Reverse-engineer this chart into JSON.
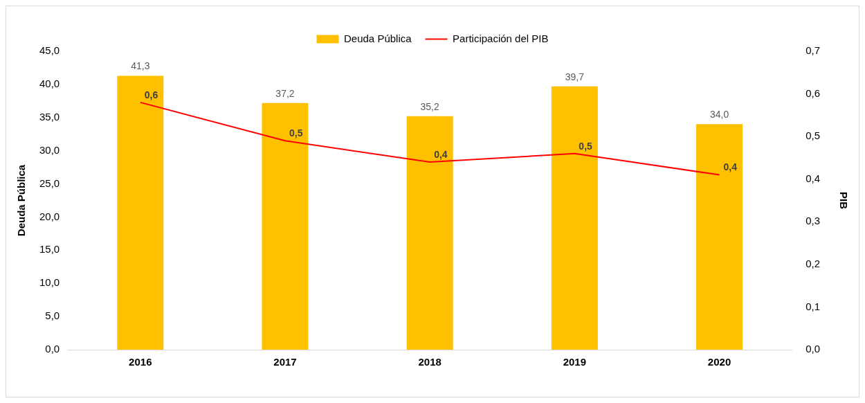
{
  "chart_data": {
    "type": "bar",
    "categories": [
      "2016",
      "2017",
      "2018",
      "2019",
      "2020"
    ],
    "series": [
      {
        "name": "Deuda Pública",
        "color": "#ffc000",
        "values": [
          41.3,
          37.2,
          35.2,
          39.7,
          34.0
        ],
        "value_labels": [
          "41,3",
          "37,2",
          "35,2",
          "39,7",
          "34,0"
        ]
      },
      {
        "name": "Participación del PIB",
        "type": "line",
        "axis": "y2",
        "color": "#ff0000",
        "values": [
          0.58,
          0.49,
          0.44,
          0.46,
          0.41
        ],
        "value_labels": [
          "0,6",
          "0,5",
          "0,4",
          "0,5",
          "0,4"
        ]
      }
    ],
    "ylabel": "Deuda Pública",
    "y2label": "PIB",
    "ylim": [
      0,
      45
    ],
    "yticks": [
      {
        "value": 0,
        "label": "0,0"
      },
      {
        "value": 5,
        "label": "5,0"
      },
      {
        "value": 10,
        "label": "10,0"
      },
      {
        "value": 15,
        "label": "15,0"
      },
      {
        "value": 20,
        "label": "20,0"
      },
      {
        "value": 25,
        "label": "25,0"
      },
      {
        "value": 30,
        "label": "30,0"
      },
      {
        "value": 35,
        "label": "35,0"
      },
      {
        "value": 40,
        "label": "40,0"
      },
      {
        "value": 45,
        "label": "45,0"
      }
    ],
    "y2lim": [
      0,
      0.7
    ],
    "y2ticks": [
      {
        "value": 0,
        "label": "0,0"
      },
      {
        "value": 0.1,
        "label": "0,1"
      },
      {
        "value": 0.2,
        "label": "0,2"
      },
      {
        "value": 0.3,
        "label": "0,3"
      },
      {
        "value": 0.4,
        "label": "0,4"
      },
      {
        "value": 0.5,
        "label": "0,5"
      },
      {
        "value": 0.6,
        "label": "0,6"
      },
      {
        "value": 0.7,
        "label": "0,7"
      }
    ],
    "legend": "top",
    "grid": false,
    "marker": "none"
  }
}
